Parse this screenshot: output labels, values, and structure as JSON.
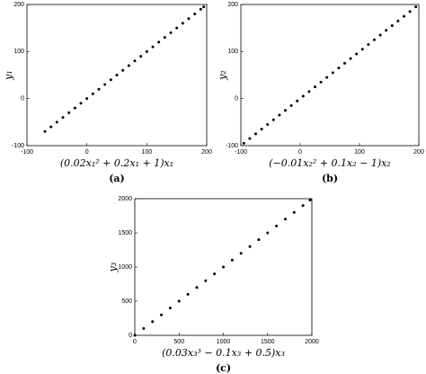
{
  "chart_data": [
    {
      "type": "scatter",
      "xlabel": "(0.02x₁² + 0.2x₁ + 1)x₁",
      "ylabel": "y₁",
      "caption": "(a)",
      "color": "#000000",
      "x": [
        -70,
        -60,
        -50,
        -40,
        -30,
        -20,
        -10,
        0,
        10,
        20,
        30,
        40,
        50,
        60,
        70,
        80,
        90,
        100,
        110,
        120,
        130,
        140,
        150,
        160,
        170,
        180,
        190,
        195
      ],
      "values": [
        -70,
        -60,
        -50,
        -40,
        -30,
        -20,
        -10,
        0,
        10,
        20,
        30,
        40,
        50,
        60,
        70,
        80,
        90,
        100,
        110,
        120,
        130,
        140,
        150,
        160,
        170,
        180,
        190,
        195
      ],
      "xlim": [
        -100,
        200
      ],
      "ylim": [
        -100,
        200
      ],
      "xticks": [
        -100,
        0,
        100,
        200
      ],
      "yticks": [
        -100,
        0,
        100,
        200
      ]
    },
    {
      "type": "scatter",
      "xlabel": "(−0.01x₂² + 0.1x₂ − 1)x₂",
      "ylabel": "y₂",
      "caption": "(b)",
      "color": "#000000",
      "x": [
        -95,
        -85,
        -75,
        -65,
        -55,
        -45,
        -35,
        -25,
        -15,
        -5,
        5,
        15,
        25,
        35,
        45,
        55,
        65,
        75,
        85,
        95,
        105,
        115,
        125,
        135,
        145,
        155,
        165,
        175,
        185,
        195
      ],
      "values": [
        -95,
        -85,
        -75,
        -65,
        -55,
        -45,
        -35,
        -25,
        -15,
        -5,
        5,
        15,
        25,
        35,
        45,
        55,
        65,
        75,
        85,
        95,
        105,
        115,
        125,
        135,
        145,
        155,
        165,
        175,
        185,
        195
      ],
      "xlim": [
        -100,
        200
      ],
      "ylim": [
        -100,
        200
      ],
      "xticks": [
        -100,
        0,
        100,
        200
      ],
      "yticks": [
        -100,
        0,
        100,
        200
      ]
    },
    {
      "type": "scatter",
      "xlabel": "(0.03x₃³ − 0.1x₃ + 0.5)x₃",
      "ylabel": "y₃",
      "caption": "(c)",
      "color": "#000000",
      "x": [
        0,
        100,
        200,
        300,
        400,
        500,
        600,
        700,
        800,
        900,
        1000,
        1100,
        1200,
        1300,
        1400,
        1500,
        1600,
        1700,
        1800,
        1900,
        1980
      ],
      "values": [
        0,
        100,
        200,
        300,
        400,
        500,
        600,
        700,
        800,
        900,
        1000,
        1100,
        1200,
        1300,
        1400,
        1500,
        1600,
        1700,
        1800,
        1900,
        1980
      ],
      "xlim": [
        0,
        2000
      ],
      "ylim": [
        0,
        2000
      ],
      "xticks": [
        0,
        500,
        1000,
        1500,
        2000
      ],
      "yticks": [
        0,
        500,
        1000,
        1500,
        2000
      ]
    }
  ]
}
